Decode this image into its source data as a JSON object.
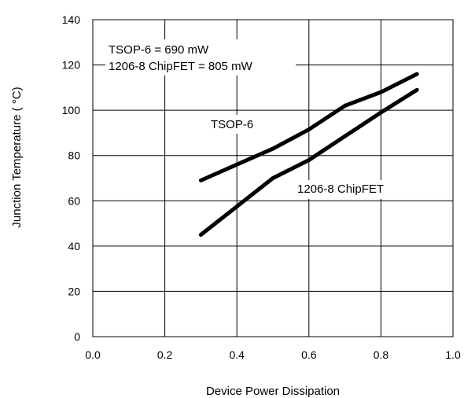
{
  "chart_data": {
    "type": "line",
    "title": "",
    "xlabel": "Device Power Dissipation",
    "ylabel": "Junction Temperature ( °C)",
    "xlim": [
      0.0,
      1.0
    ],
    "ylim": [
      0,
      140
    ],
    "x_ticks": [
      "0.0",
      "0.2",
      "0.4",
      "0.6",
      "0.8",
      "1.0"
    ],
    "y_ticks": [
      "0",
      "20",
      "40",
      "60",
      "80",
      "100",
      "120",
      "140"
    ],
    "grid": true,
    "legend": "none",
    "series": [
      {
        "name": "TSOP-6",
        "x": [
          0.3,
          0.4,
          0.5,
          0.6,
          0.7,
          0.8,
          0.9
        ],
        "y": [
          69,
          76,
          83,
          91.5,
          102,
          108,
          116
        ]
      },
      {
        "name": "1206-8 ChipFET",
        "x": [
          0.3,
          0.4,
          0.5,
          0.6,
          0.7,
          0.8,
          0.9
        ],
        "y": [
          45,
          57.5,
          70,
          78,
          88.5,
          99,
          109
        ]
      }
    ],
    "annotations": [
      "TSOP-6 = 690 mW",
      "1206-8 ChipFET = 805 mW"
    ],
    "colors": {
      "line": "#000000",
      "grid": "#000000"
    }
  }
}
